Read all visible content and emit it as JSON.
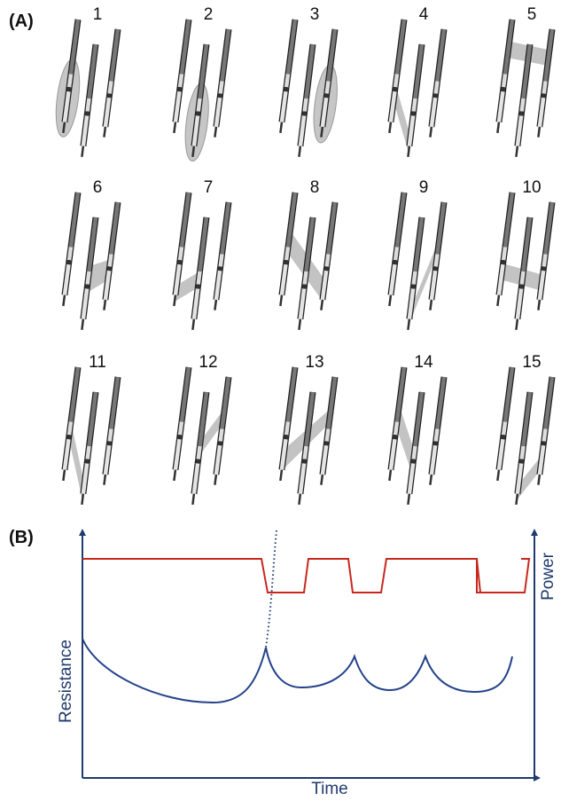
{
  "panel_a": {
    "label": "(A)",
    "configurations": [
      "1",
      "2",
      "3",
      "4",
      "5",
      "6",
      "7",
      "8",
      "9",
      "10",
      "11",
      "12",
      "13",
      "14",
      "15"
    ]
  },
  "panel_b": {
    "label": "(B)",
    "y_axis_left": "Resistance",
    "y_axis_right": "Power",
    "x_axis": "Time"
  }
}
